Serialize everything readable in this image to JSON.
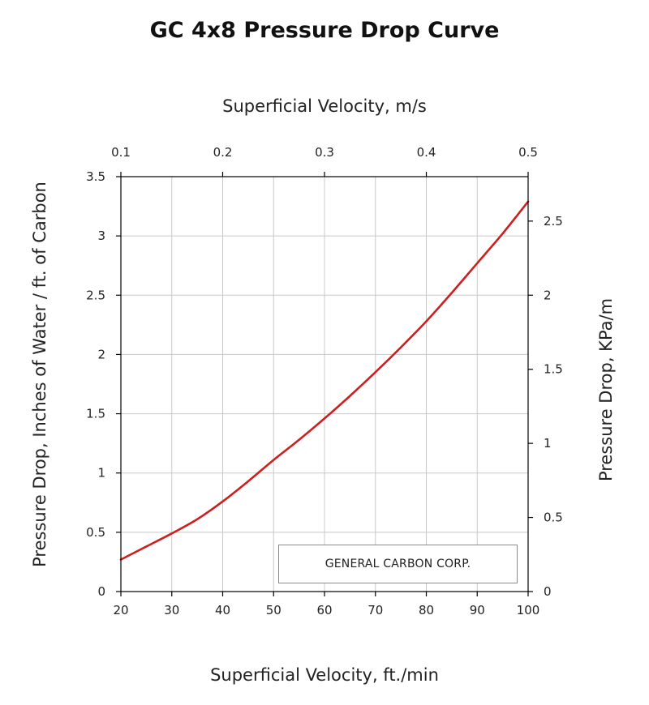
{
  "chart_data": {
    "type": "line",
    "title": "GC 4x8 Pressure Drop Curve",
    "xlabel": "Superficial Velocity, ft./min",
    "ylabel": "Pressure  Drop, Inches of Water / ft. of Carbon",
    "x2label": "Superficial Velocity, m/s",
    "y2label": "Pressure  Drop, KPa/m",
    "xlim": [
      20,
      100
    ],
    "ylim": [
      0,
      3.5
    ],
    "x2lim": [
      0.1,
      0.5
    ],
    "y2lim": [
      0,
      2.8
    ],
    "xticks": [
      20,
      30,
      40,
      50,
      60,
      70,
      80,
      90,
      100
    ],
    "yticks": [
      0,
      0.5,
      1,
      1.5,
      2,
      2.5,
      3,
      3.5
    ],
    "x2ticks": [
      0.1,
      0.2,
      0.3,
      0.4,
      0.5
    ],
    "y2ticks": [
      0,
      0.5,
      1,
      1.5,
      2,
      2.5
    ],
    "grid": true,
    "series": [
      {
        "color": "#cc1f1f",
        "x": [
          20,
          25,
          30,
          35,
          40,
          45,
          50,
          55,
          60,
          65,
          70,
          75,
          80,
          85,
          90,
          95,
          100
        ],
        "y": [
          0.27,
          0.38,
          0.49,
          0.61,
          0.76,
          0.93,
          1.11,
          1.28,
          1.46,
          1.65,
          1.85,
          2.06,
          2.28,
          2.52,
          2.77,
          3.02,
          3.29
        ]
      }
    ],
    "annotations": [
      "GENERAL  CARBON  CORP."
    ]
  }
}
